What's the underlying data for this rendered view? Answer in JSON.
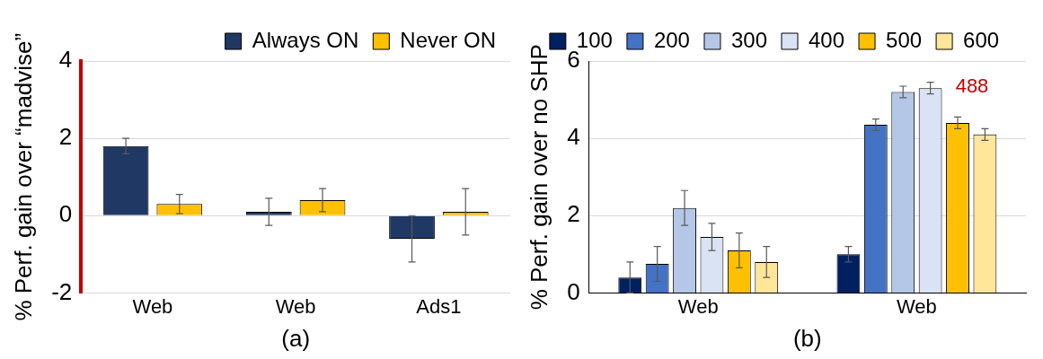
{
  "chart_data": [
    {
      "type": "bar",
      "xlabel": "(a)",
      "ylabel": "% Perf. gain over “madvise”",
      "categories": [
        "Web",
        "Web",
        "Ads1"
      ],
      "ylim": [
        -2,
        4
      ],
      "yticks": [
        -2,
        0,
        2,
        4
      ],
      "grid": "y",
      "legend": "top right",
      "series": [
        {
          "name": "Always ON",
          "color": "#203864",
          "values": [
            1.8,
            0.1,
            -0.6
          ],
          "errors": [
            0.2,
            0.35,
            0.6
          ]
        },
        {
          "name": "Never ON",
          "color": "#ffc000",
          "values": [
            0.3,
            0.4,
            0.1
          ],
          "errors": [
            0.25,
            0.3,
            0.6
          ]
        }
      ]
    },
    {
      "type": "bar",
      "xlabel": "(b)",
      "ylabel": "% Perf. gain over no SHP",
      "categories": [
        "Web",
        "Web"
      ],
      "ylim": [
        0,
        6
      ],
      "yticks": [
        0,
        2,
        4,
        6
      ],
      "grid": "y",
      "legend": "top",
      "annotations": [
        "488"
      ],
      "series": [
        {
          "name": "100",
          "color": "#002060",
          "values": [
            0.4,
            1.0
          ],
          "errors": [
            0.4,
            0.2
          ]
        },
        {
          "name": "200",
          "color": "#4472c4",
          "values": [
            0.75,
            4.35
          ],
          "errors": [
            0.45,
            0.15
          ]
        },
        {
          "name": "300",
          "color": "#b4c7e7",
          "values": [
            2.2,
            5.2
          ],
          "errors": [
            0.45,
            0.15
          ]
        },
        {
          "name": "400",
          "color": "#dae3f3",
          "values": [
            1.45,
            5.3
          ],
          "errors": [
            0.35,
            0.15
          ]
        },
        {
          "name": "500",
          "color": "#ffc000",
          "values": [
            1.1,
            4.4
          ],
          "errors": [
            0.45,
            0.15
          ]
        },
        {
          "name": "600",
          "color": "#ffe699",
          "values": [
            0.8,
            4.1
          ],
          "errors": [
            0.4,
            0.15
          ]
        }
      ]
    }
  ]
}
